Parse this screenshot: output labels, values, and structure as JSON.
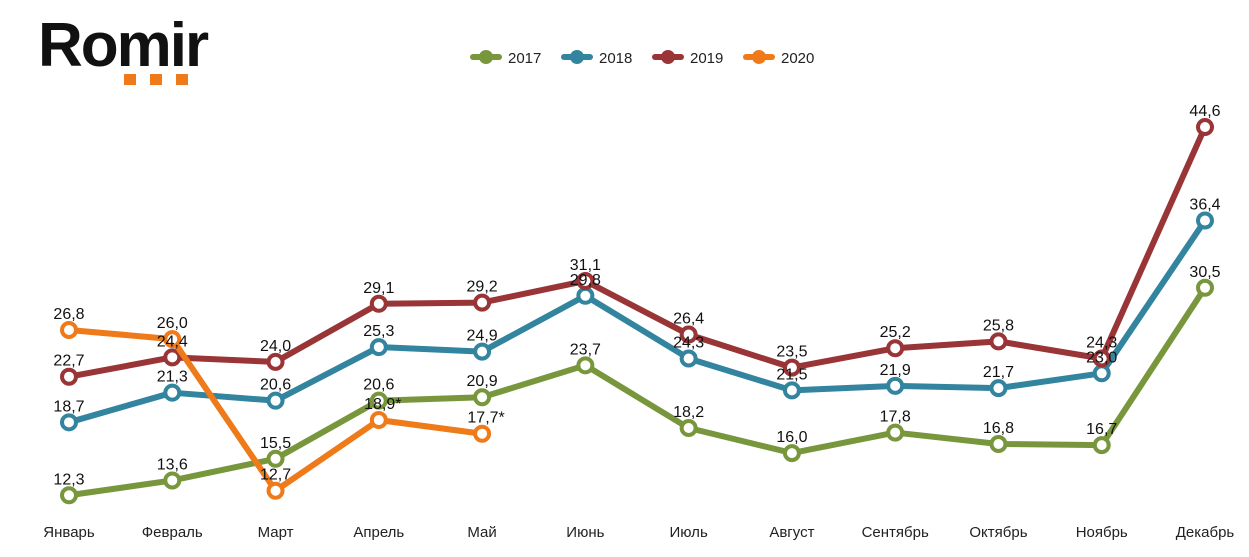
{
  "brand": {
    "name": "Romir",
    "accent_color": "#ee7a1a"
  },
  "chart_data": {
    "type": "line",
    "title": "",
    "xlabel": "",
    "ylabel": "",
    "ylim": [
      10,
      46
    ],
    "grid": false,
    "legend_position": "top-center",
    "categories": [
      "Январь",
      "Февраль",
      "Март",
      "Апрель",
      "Май",
      "Июнь",
      "Июль",
      "Август",
      "Сентябрь",
      "Октябрь",
      "Ноябрь",
      "Декабрь"
    ],
    "series": [
      {
        "name": "2017",
        "color": "#78973d",
        "values": [
          12.3,
          13.6,
          15.5,
          20.6,
          20.9,
          23.7,
          18.2,
          16.0,
          17.8,
          16.8,
          16.7,
          30.5
        ],
        "labels": [
          "12,3",
          "13,6",
          "15,5",
          "20,6",
          "20,9",
          "23,7",
          "18,2",
          "16,0",
          "17,8",
          "16,8",
          "16,7",
          "30,5"
        ]
      },
      {
        "name": "2018",
        "color": "#33849e",
        "values": [
          18.7,
          21.3,
          20.6,
          25.3,
          24.9,
          29.8,
          24.3,
          21.5,
          21.9,
          21.7,
          23.0,
          36.4
        ],
        "labels": [
          "18,7",
          "21,3",
          "20,6",
          "25,3",
          "24,9",
          "29,8",
          "24,3",
          "21,5",
          "21,9",
          "21,7",
          "23,0",
          "36,4"
        ]
      },
      {
        "name": "2019",
        "color": "#993437",
        "values": [
          22.7,
          24.4,
          24.0,
          29.1,
          29.2,
          31.1,
          26.4,
          23.5,
          25.2,
          25.8,
          24.3,
          44.6
        ],
        "labels": [
          "22,7",
          "24,4",
          "24,0",
          "29,1",
          "29,2",
          "31,1",
          "26,4",
          "23,5",
          "25,2",
          "25,8",
          "24,3",
          "44,6"
        ]
      },
      {
        "name": "2020",
        "color": "#ee7a1a",
        "values": [
          26.8,
          26.0,
          12.7,
          18.9,
          17.7,
          null,
          null,
          null,
          null,
          null,
          null,
          null
        ],
        "labels": [
          "26,8",
          "26,0",
          "12,7",
          "18,9*",
          "17,7*",
          "",
          "",
          "",
          "",
          "",
          "",
          ""
        ]
      }
    ]
  }
}
